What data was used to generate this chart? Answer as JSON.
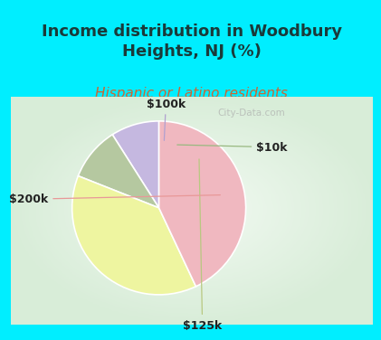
{
  "title": "Income distribution in Woodbury\nHeights, NJ (%)",
  "subtitle": "Hispanic or Latino residents",
  "title_color": "#1a3a3a",
  "subtitle_color": "#cc6633",
  "background_color": "#00eeff",
  "slices": [
    {
      "label": "$100k",
      "value": 9,
      "color": "#c5b8e0"
    },
    {
      "label": "$10k",
      "value": 10,
      "color": "#b5c8a0"
    },
    {
      "label": "$125k",
      "value": 38,
      "color": "#eef5a0"
    },
    {
      "label": "$200k",
      "value": 43,
      "color": "#f0b8c0"
    }
  ],
  "startangle": 90,
  "watermark": "City-Data.com",
  "title_fontsize": 13,
  "subtitle_fontsize": 11,
  "label_fontsize": 9
}
